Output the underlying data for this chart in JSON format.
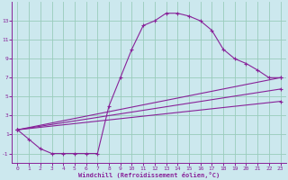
{
  "xlabel": "Windchill (Refroidissement éolien,°C)",
  "bg_color": "#cce8ee",
  "line_color": "#882299",
  "grid_color": "#99ccbb",
  "xlim": [
    -0.5,
    23.5
  ],
  "ylim": [
    -2.0,
    15.0
  ],
  "xticks": [
    0,
    1,
    2,
    3,
    4,
    5,
    6,
    7,
    8,
    9,
    10,
    11,
    12,
    13,
    14,
    15,
    16,
    17,
    18,
    19,
    20,
    21,
    22,
    23
  ],
  "yticks": [
    -1,
    1,
    3,
    5,
    7,
    9,
    11,
    13
  ],
  "line1_x": [
    0,
    1,
    2,
    3,
    4,
    5,
    6,
    7,
    8,
    9,
    10,
    11,
    12,
    13,
    14,
    15,
    16,
    17,
    18,
    19,
    20,
    21,
    22,
    23
  ],
  "line1_y": [
    1.5,
    0.5,
    -0.5,
    -1.0,
    -1.0,
    -1.0,
    -1.0,
    -1.0,
    4.0,
    7.0,
    10.0,
    12.5,
    13.0,
    13.8,
    13.8,
    13.5,
    13.0,
    12.0,
    10.0,
    9.0,
    8.5,
    7.8,
    7.0,
    7.0
  ],
  "line2_x": [
    0,
    23
  ],
  "line2_y": [
    1.5,
    7.0
  ],
  "line3_x": [
    0,
    23
  ],
  "line3_y": [
    1.5,
    5.8
  ],
  "line4_x": [
    0,
    23
  ],
  "line4_y": [
    1.5,
    4.5
  ]
}
